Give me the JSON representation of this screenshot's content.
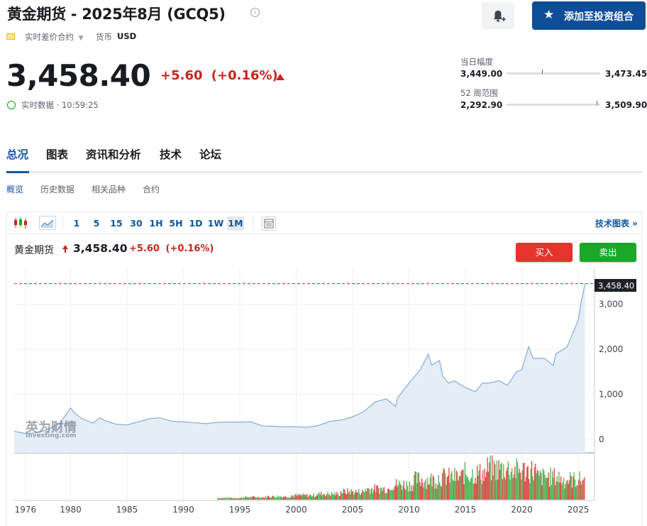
{
  "header": {
    "title": "黄金期货 - 2025年8月 (GCQ5)",
    "info_icon": "i",
    "contract_type": "实时差价合约",
    "currency_label": "货币",
    "currency_value": "USD",
    "add_button": "添加至投资组合"
  },
  "quote": {
    "price": "3,458.40",
    "change": "+5.60",
    "change_pct": "(+0.16%)",
    "realtime": "实时数据 · 10:59:25"
  },
  "ranges": {
    "day_label": "当日幅度",
    "day_low": "3,449.00",
    "day_high": "3,473.45",
    "day_position": 0.38,
    "week52_label": "52 周范围",
    "week52_low": "2,292.90",
    "week52_high": "3,509.90",
    "week52_position": 0.96
  },
  "tabs": [
    "总况",
    "图表",
    "资讯和分析",
    "技术",
    "论坛"
  ],
  "subtabs": [
    "概览",
    "历史数据",
    "相关品种",
    "合约"
  ],
  "toolbar": {
    "intervals": [
      "1",
      "5",
      "15",
      "30",
      "1H",
      "5H",
      "1D",
      "1W",
      "1M"
    ],
    "active_interval": "1M",
    "tech_chart_link": "技术图表 »"
  },
  "chart_info": {
    "name": "黄金期货",
    "price": "3,458.40",
    "change": "+5.60",
    "change_pct": "(+0.16%)",
    "buy_label": "买入",
    "sell_label": "卖出",
    "watermark_cn": "英为财情",
    "watermark_en": "Investing.com"
  },
  "colors": {
    "accent": "#1256a0",
    "negative": "#c3271c",
    "buy": "#e7332b",
    "sell": "#1aa829",
    "line": "#7ba7cf",
    "area": "#e5edf6"
  },
  "chart_data": {
    "type": "area",
    "title": "",
    "xlabel": "",
    "ylabel": "",
    "x_ticks": [
      "1976",
      "1980",
      "1985",
      "1990",
      "1995",
      "2000",
      "2005",
      "2010",
      "2015",
      "2020",
      "2025"
    ],
    "y_ticks": [
      "0",
      "1,000",
      "2,000",
      "3,000"
    ],
    "ylim": [
      -300,
      3800
    ],
    "xlim": [
      1975.0,
      2025.75
    ],
    "last_price_label": "3,458.40",
    "series": [
      {
        "x": [
          1975.0,
          1976.0,
          1977.0,
          1978.0,
          1979.0,
          1979.5,
          1980.0,
          1980.3,
          1981.0,
          1982.0,
          1982.6,
          1983.0,
          1984.0,
          1985.0,
          1986.0,
          1987.0,
          1987.9,
          1989.0,
          1990.0,
          1991.0,
          1992.0,
          1993.0,
          1994.0,
          1995.0,
          1996.0,
          1997.0,
          1998.0,
          1999.0,
          2000.0,
          2001.0,
          2002.0,
          2003.0,
          2004.0,
          2005.0,
          2006.0,
          2007.0,
          2008.0,
          2008.8,
          2009.0,
          2010.0,
          2011.0,
          2011.7,
          2012.0,
          2012.7,
          2013.0,
          2013.5,
          2014.0,
          2015.0,
          2015.9,
          2016.5,
          2017.0,
          2018.0,
          2018.7,
          2019.0,
          2019.5,
          2020.0,
          2020.6,
          2021.0,
          2022.0,
          2022.8,
          2023.0,
          2024.0,
          2024.5,
          2025.0,
          2025.3,
          2025.6
        ],
        "y": [
          180,
          130,
          150,
          220,
          350,
          520,
          700,
          600,
          460,
          360,
          480,
          420,
          340,
          320,
          390,
          460,
          480,
          400,
          390,
          370,
          350,
          380,
          385,
          385,
          390,
          300,
          290,
          280,
          280,
          270,
          310,
          400,
          430,
          500,
          620,
          830,
          900,
          730,
          930,
          1250,
          1550,
          1890,
          1650,
          1750,
          1400,
          1250,
          1300,
          1150,
          1060,
          1250,
          1250,
          1300,
          1200,
          1300,
          1500,
          1550,
          2060,
          1800,
          1800,
          1640,
          1900,
          2050,
          2350,
          2650,
          3100,
          3458
        ]
      }
    ],
    "volume": [
      0.05,
      0.07,
      0.09,
      0.12,
      0.16,
      0.22,
      0.3,
      0.42,
      0.55,
      0.62,
      0.72,
      0.85,
      0.8,
      0.62,
      0.55
    ]
  }
}
